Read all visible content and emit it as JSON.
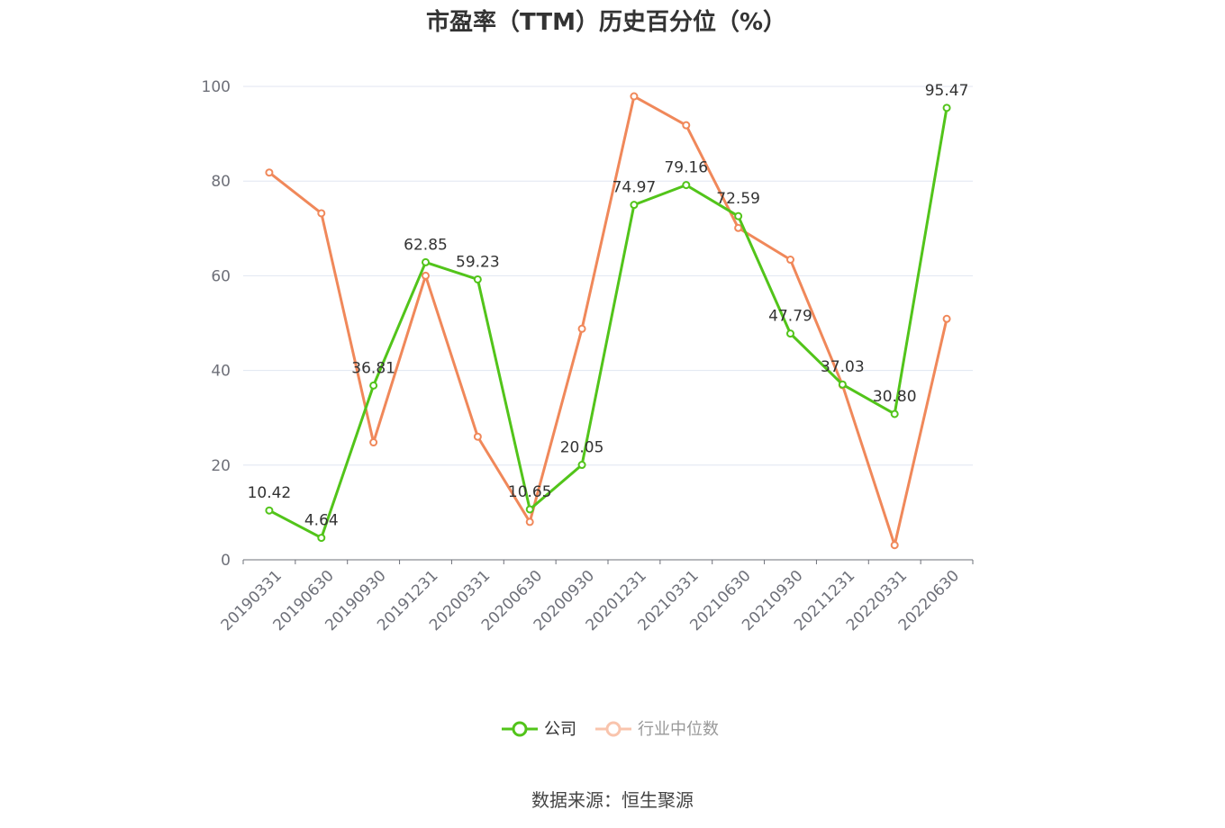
{
  "chart_data": {
    "type": "line",
    "title": "市盈率（TTM）历史百分位（%）",
    "source": "数据来源：恒生聚源",
    "categories": [
      "20190331",
      "20190630",
      "20190930",
      "20191231",
      "20200331",
      "20200630",
      "20200930",
      "20201231",
      "20210331",
      "20210630",
      "20210930",
      "20211231",
      "20220331",
      "20220630"
    ],
    "ylim": [
      0,
      100
    ],
    "yticks": [
      0,
      20,
      40,
      60,
      80,
      100
    ],
    "grid": true,
    "legend_position": "bottom",
    "series": [
      {
        "name": "公司",
        "color": "#52c41a",
        "values": [
          10.42,
          4.64,
          36.81,
          62.85,
          59.23,
          10.65,
          20.05,
          74.97,
          79.16,
          72.59,
          47.79,
          37.03,
          30.8,
          95.47
        ],
        "labels": [
          "10.42",
          "4.64",
          "36.81",
          "62.85",
          "59.23",
          "10.65",
          "20.05",
          "74.97",
          "79.16",
          "72.59",
          "47.79",
          "37.03",
          "30.80",
          "95.47"
        ]
      },
      {
        "name": "行业中位数",
        "color": "#f0885a",
        "values": [
          81.8,
          73.2,
          24.8,
          60.0,
          26.0,
          8.0,
          48.8,
          97.9,
          91.8,
          70.1,
          63.4,
          36.9,
          3.1,
          50.9
        ]
      }
    ]
  }
}
